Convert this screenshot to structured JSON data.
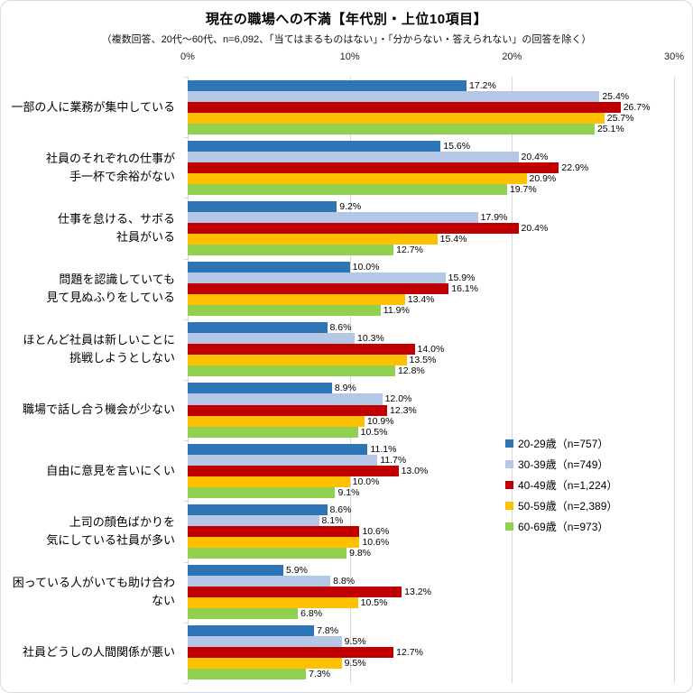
{
  "page": {
    "title": "現在の職場への不満【年代別・上位10項目】",
    "subtitle": "（複数回答、20代～60代、n=6,092、「当てはまるものはない」・「分からない・答えられない」の回答を除く）"
  },
  "chart_data": {
    "type": "bar",
    "orientation": "horizontal",
    "title": "現在の職場への不満【年代別・上位10項目】",
    "subtitle": "（複数回答、20代～60代、n=6,092、「当てはまるものはない」・「分からない・答えられない」の回答を除く）",
    "xlim": [
      0,
      30
    ],
    "x_ticks": [
      "0%",
      "10%",
      "20%",
      "30%"
    ],
    "grid": true,
    "value_suffix": "%",
    "legend_position": "right-middle",
    "categories": [
      {
        "lines": [
          "一部の人に業務が集中している"
        ]
      },
      {
        "lines": [
          "社員のそれぞれの仕事が",
          "手一杯で余裕がない"
        ]
      },
      {
        "lines": [
          "仕事を怠ける、サボる",
          "社員がいる"
        ]
      },
      {
        "lines": [
          "問題を認識していても",
          "見て見ぬふりをしている"
        ]
      },
      {
        "lines": [
          "ほとんど社員は新しいことに",
          "挑戦しようとしない"
        ]
      },
      {
        "lines": [
          "職場で話し合う機会が少ない"
        ]
      },
      {
        "lines": [
          "自由に意見を言いにくい"
        ]
      },
      {
        "lines": [
          "上司の顔色ばかりを",
          "気にしている社員が多い"
        ]
      },
      {
        "lines": [
          "困っている人がいても助け合わない"
        ]
      },
      {
        "lines": [
          "社員どうしの人間関係が悪い"
        ]
      }
    ],
    "series": [
      {
        "name": "20-29歳（n=757）",
        "color": "#2E75B6",
        "values": [
          17.2,
          15.6,
          9.2,
          10.0,
          8.6,
          8.9,
          11.1,
          8.6,
          5.9,
          7.8
        ]
      },
      {
        "name": "30-39歳（n=749）",
        "color": "#B4C7E7",
        "values": [
          25.4,
          20.4,
          17.9,
          15.9,
          10.3,
          12.0,
          11.7,
          8.1,
          8.8,
          9.5
        ]
      },
      {
        "name": "40-49歳（n=1,224）",
        "color": "#C00000",
        "values": [
          26.7,
          22.9,
          20.4,
          16.1,
          14.0,
          12.3,
          13.0,
          10.6,
          13.2,
          12.7
        ]
      },
      {
        "name": "50-59歳（n=2,389）",
        "color": "#FFC000",
        "values": [
          25.7,
          20.9,
          15.4,
          13.4,
          13.5,
          10.9,
          10.0,
          10.6,
          10.5,
          9.5
        ]
      },
      {
        "name": "60-69歳（n=973）",
        "color": "#92D050",
        "values": [
          25.1,
          19.7,
          12.7,
          11.9,
          12.8,
          10.5,
          9.1,
          9.8,
          6.8,
          7.3
        ]
      }
    ],
    "colors": {
      "gridline": "#d9d9d9",
      "text": "#000000"
    }
  }
}
